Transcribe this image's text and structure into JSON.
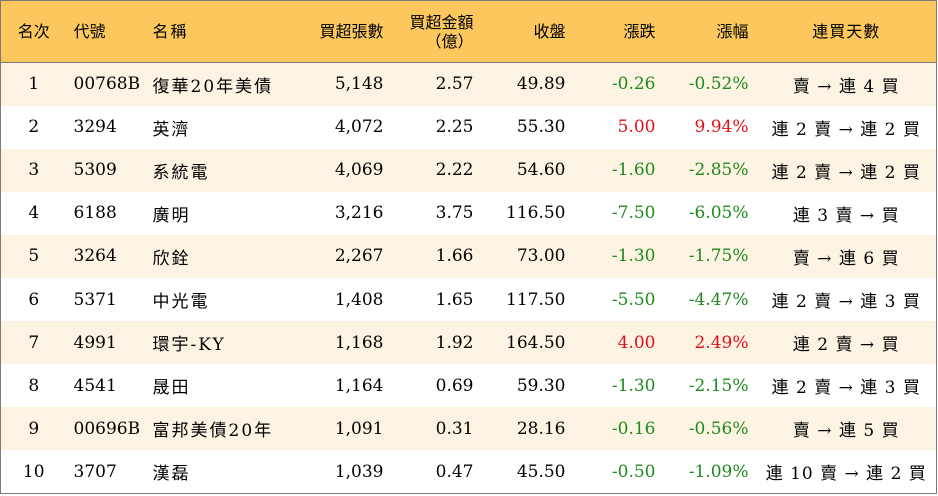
{
  "colors": {
    "header_bg": "#fcc85e",
    "stripe_bg": "#fdf3e2",
    "up": "#e0101a",
    "down": "#1e8a1e",
    "border": "#7a7a7a"
  },
  "headers": {
    "rank": "名次",
    "code": "代號",
    "name": "名稱",
    "buy_lots": "買超張數",
    "buy_amount_line1": "買超金額",
    "buy_amount_line2": "（億）",
    "close": "收盤",
    "change": "漲跌",
    "change_pct": "漲幅",
    "days": "連買天數"
  },
  "rows": [
    {
      "rank": "1",
      "code": "00768B",
      "name": "復華20年美債",
      "buy_lots": "5,148",
      "buy_amount": "2.57",
      "close": "49.89",
      "change": "-0.26",
      "change_pct": "-0.52%",
      "days": "賣 → 連 4 買",
      "trend": "down"
    },
    {
      "rank": "2",
      "code": "3294",
      "name": "英濟",
      "buy_lots": "4,072",
      "buy_amount": "2.25",
      "close": "55.30",
      "change": "5.00",
      "change_pct": "9.94%",
      "days": "連 2 賣 → 連 2 買",
      "trend": "up"
    },
    {
      "rank": "3",
      "code": "5309",
      "name": "系統電",
      "buy_lots": "4,069",
      "buy_amount": "2.22",
      "close": "54.60",
      "change": "-1.60",
      "change_pct": "-2.85%",
      "days": "連 2 賣 → 連 2 買",
      "trend": "down"
    },
    {
      "rank": "4",
      "code": "6188",
      "name": "廣明",
      "buy_lots": "3,216",
      "buy_amount": "3.75",
      "close": "116.50",
      "change": "-7.50",
      "change_pct": "-6.05%",
      "days": "連 3 賣 → 買",
      "trend": "down"
    },
    {
      "rank": "5",
      "code": "3264",
      "name": "欣銓",
      "buy_lots": "2,267",
      "buy_amount": "1.66",
      "close": "73.00",
      "change": "-1.30",
      "change_pct": "-1.75%",
      "days": "賣 → 連 6 買",
      "trend": "down"
    },
    {
      "rank": "6",
      "code": "5371",
      "name": "中光電",
      "buy_lots": "1,408",
      "buy_amount": "1.65",
      "close": "117.50",
      "change": "-5.50",
      "change_pct": "-4.47%",
      "days": "連 2 賣 → 連 3 買",
      "trend": "down"
    },
    {
      "rank": "7",
      "code": "4991",
      "name": "環宇-KY",
      "buy_lots": "1,168",
      "buy_amount": "1.92",
      "close": "164.50",
      "change": "4.00",
      "change_pct": "2.49%",
      "days": "連 2 賣 → 買",
      "trend": "up"
    },
    {
      "rank": "8",
      "code": "4541",
      "name": "晟田",
      "buy_lots": "1,164",
      "buy_amount": "0.69",
      "close": "59.30",
      "change": "-1.30",
      "change_pct": "-2.15%",
      "days": "連 2 賣 → 連 3 買",
      "trend": "down"
    },
    {
      "rank": "9",
      "code": "00696B",
      "name": "富邦美債20年",
      "buy_lots": "1,091",
      "buy_amount": "0.31",
      "close": "28.16",
      "change": "-0.16",
      "change_pct": "-0.56%",
      "days": "賣 → 連 5 買",
      "trend": "down"
    },
    {
      "rank": "10",
      "code": "3707",
      "name": "漢磊",
      "buy_lots": "1,039",
      "buy_amount": "0.47",
      "close": "45.50",
      "change": "-0.50",
      "change_pct": "-1.09%",
      "days": "連 10 賣 → 連 2 買",
      "trend": "down"
    }
  ]
}
